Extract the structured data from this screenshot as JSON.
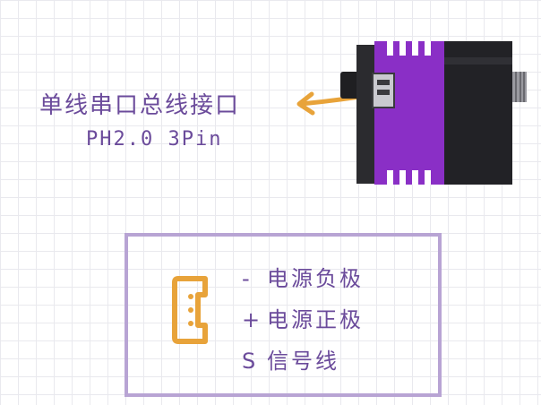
{
  "interface": {
    "title": "单线串口总线接口",
    "subtitle": "PH2.0 3Pin"
  },
  "pins": [
    {
      "symbol": "-",
      "label": "电源负极"
    },
    {
      "symbol": "+",
      "label": "电源正极"
    },
    {
      "symbol": "S",
      "label": "信号线"
    }
  ],
  "colors": {
    "text": "#6b4b9b",
    "arrow": "#e8a33a",
    "servo_body": "#8a2fc6",
    "box_border": "#b8a4d4"
  }
}
